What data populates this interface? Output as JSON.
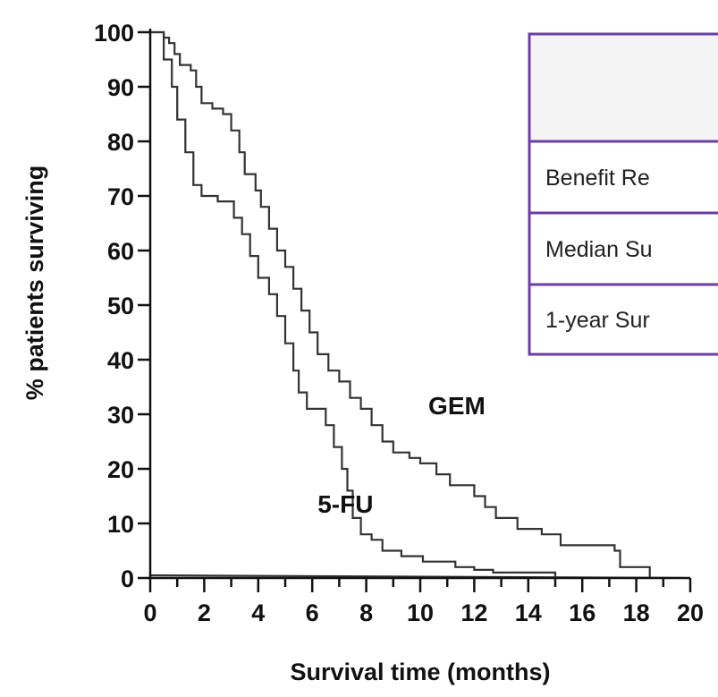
{
  "chart_data": {
    "type": "line",
    "xlabel": "Survival time (months)",
    "ylabel": "% patients surviving",
    "xlim": [
      0,
      20
    ],
    "ylim": [
      0,
      100
    ],
    "x_ticks": [
      "0",
      "2",
      "4",
      "6",
      "8",
      "10",
      "12",
      "14",
      "16",
      "18",
      "20"
    ],
    "y_ticks": [
      "0",
      "10",
      "20",
      "30",
      "40",
      "50",
      "60",
      "70",
      "80",
      "90",
      "100"
    ],
    "grid": false,
    "series": [
      {
        "name": "GEM",
        "step": true,
        "points": [
          [
            0,
            100
          ],
          [
            0.4,
            100
          ],
          [
            0.5,
            99
          ],
          [
            0.7,
            98
          ],
          [
            0.9,
            96
          ],
          [
            1.1,
            94
          ],
          [
            1.5,
            93
          ],
          [
            1.7,
            90
          ],
          [
            1.9,
            87
          ],
          [
            2.3,
            86
          ],
          [
            2.7,
            85
          ],
          [
            3.0,
            82
          ],
          [
            3.3,
            78
          ],
          [
            3.5,
            74
          ],
          [
            3.9,
            71
          ],
          [
            4.1,
            68
          ],
          [
            4.4,
            64
          ],
          [
            4.7,
            60
          ],
          [
            5.0,
            57
          ],
          [
            5.3,
            53
          ],
          [
            5.6,
            49
          ],
          [
            5.9,
            45
          ],
          [
            6.2,
            41
          ],
          [
            6.6,
            38
          ],
          [
            7.0,
            36
          ],
          [
            7.4,
            33
          ],
          [
            7.8,
            31
          ],
          [
            8.2,
            28
          ],
          [
            8.6,
            25
          ],
          [
            9.0,
            23
          ],
          [
            9.6,
            22
          ],
          [
            10.0,
            21
          ],
          [
            10.6,
            19
          ],
          [
            11.1,
            17
          ],
          [
            12.0,
            15
          ],
          [
            12.4,
            13
          ],
          [
            12.8,
            11
          ],
          [
            13.6,
            9
          ],
          [
            14.5,
            8
          ],
          [
            15.2,
            6
          ],
          [
            17.2,
            5
          ],
          [
            17.4,
            2
          ],
          [
            18.5,
            0
          ]
        ]
      },
      {
        "name": "5-FU",
        "step": true,
        "points": [
          [
            0,
            100
          ],
          [
            0.3,
            100
          ],
          [
            0.5,
            95
          ],
          [
            0.8,
            90
          ],
          [
            1.0,
            84
          ],
          [
            1.3,
            78
          ],
          [
            1.6,
            72
          ],
          [
            1.9,
            70
          ],
          [
            2.5,
            69
          ],
          [
            3.1,
            66
          ],
          [
            3.4,
            63
          ],
          [
            3.7,
            59
          ],
          [
            4.0,
            55
          ],
          [
            4.4,
            52
          ],
          [
            4.7,
            48
          ],
          [
            5.0,
            43
          ],
          [
            5.3,
            38
          ],
          [
            5.5,
            34
          ],
          [
            5.8,
            31
          ],
          [
            6.5,
            28
          ],
          [
            6.8,
            24
          ],
          [
            7.1,
            20
          ],
          [
            7.3,
            16
          ],
          [
            7.5,
            11
          ],
          [
            7.8,
            8
          ],
          [
            8.2,
            7
          ],
          [
            8.6,
            5
          ],
          [
            9.3,
            4
          ],
          [
            10.1,
            3
          ],
          [
            11.3,
            2
          ],
          [
            12.0,
            1.5
          ],
          [
            12.7,
            1
          ],
          [
            15.0,
            0
          ]
        ]
      },
      {
        "name": "",
        "step": false,
        "points": [
          [
            0,
            0.5
          ],
          [
            20,
            0
          ]
        ]
      }
    ],
    "annotations": [
      {
        "text": "GEM",
        "x": 10.3,
        "y": 30
      },
      {
        "text": "5-FU",
        "x": 6.2,
        "y": 12
      }
    ]
  },
  "table": {
    "border_color": "#6b3ea6",
    "rows": [
      {
        "label": ""
      },
      {
        "label": "Benefit Re"
      },
      {
        "label": "Median Su"
      },
      {
        "label": "1-year Sur"
      }
    ]
  },
  "colors": {
    "line": "#333333",
    "axis": "#111111",
    "table_header_bg": "#f4f4f4"
  }
}
